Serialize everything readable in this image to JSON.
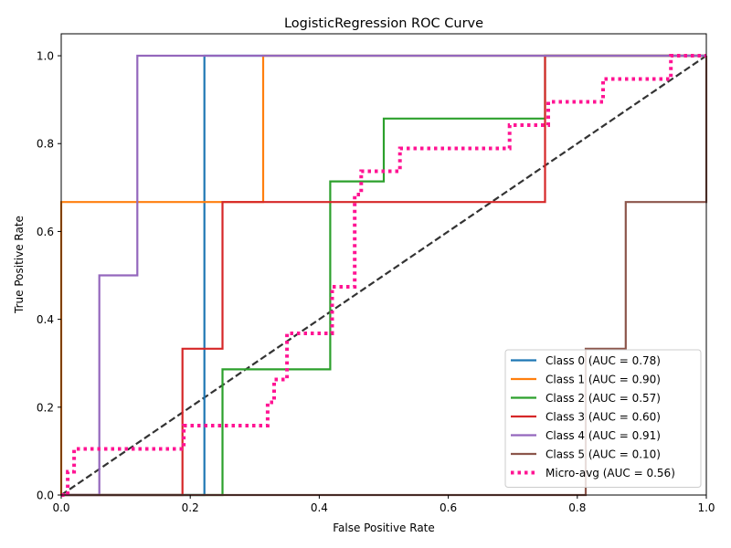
{
  "chart_data": {
    "type": "line",
    "title": "LogisticRegression ROC Curve",
    "xlabel": "False Positive Rate",
    "ylabel": "True Positive Rate",
    "xlim": [
      0.0,
      1.0
    ],
    "ylim": [
      0.0,
      1.05
    ],
    "xticks": [
      "0.0",
      "0.2",
      "0.4",
      "0.6",
      "0.8",
      "1.0"
    ],
    "yticks": [
      "0.0",
      "0.2",
      "0.4",
      "0.6",
      "0.8",
      "1.0"
    ],
    "grid": false,
    "legend_position": "lower-right",
    "series": [
      {
        "name": "Class 0 (AUC = 0.78)",
        "color": "#1f77b4",
        "style": "solid",
        "points": [
          [
            0,
            0
          ],
          [
            0.222,
            0
          ],
          [
            0.222,
            1.0
          ],
          [
            1,
            1.0
          ]
        ]
      },
      {
        "name": "Class 1 (AUC = 0.90)",
        "color": "#ff7f0e",
        "style": "solid",
        "points": [
          [
            0,
            0
          ],
          [
            0,
            0.667
          ],
          [
            0.313,
            0.667
          ],
          [
            0.313,
            1.0
          ],
          [
            1,
            1.0
          ]
        ]
      },
      {
        "name": "Class 2 (AUC = 0.57)",
        "color": "#2ca02c",
        "style": "solid",
        "points": [
          [
            0,
            0
          ],
          [
            0.25,
            0
          ],
          [
            0.25,
            0.286
          ],
          [
            0.417,
            0.286
          ],
          [
            0.417,
            0.714
          ],
          [
            0.5,
            0.714
          ],
          [
            0.5,
            0.857
          ],
          [
            0.75,
            0.857
          ],
          [
            0.75,
            1.0
          ],
          [
            1,
            1.0
          ]
        ]
      },
      {
        "name": "Class 3 (AUC = 0.60)",
        "color": "#d62728",
        "style": "solid",
        "points": [
          [
            0,
            0
          ],
          [
            0.188,
            0
          ],
          [
            0.188,
            0.333
          ],
          [
            0.25,
            0.333
          ],
          [
            0.25,
            0.667
          ],
          [
            0.75,
            0.667
          ],
          [
            0.75,
            1.0
          ],
          [
            1,
            1.0
          ]
        ]
      },
      {
        "name": "Class 4 (AUC = 0.91)",
        "color": "#9467bd",
        "style": "solid",
        "points": [
          [
            0,
            0
          ],
          [
            0.059,
            0
          ],
          [
            0.059,
            0.5
          ],
          [
            0.118,
            0.5
          ],
          [
            0.118,
            1.0
          ],
          [
            1,
            1.0
          ]
        ]
      },
      {
        "name": "Class 5 (AUC = 0.10)",
        "color": "#8c564b",
        "style": "solid",
        "points": [
          [
            0,
            0
          ],
          [
            0.813,
            0
          ],
          [
            0.813,
            0.333
          ],
          [
            0.875,
            0.333
          ],
          [
            0.875,
            0.667
          ],
          [
            1,
            0.667
          ],
          [
            1,
            1.0
          ]
        ]
      },
      {
        "name": "Micro-avg (AUC = 0.56)",
        "color": "#ff1493",
        "style": "dotted",
        "points": [
          [
            0,
            0
          ],
          [
            0.01,
            0
          ],
          [
            0.01,
            0.053
          ],
          [
            0.02,
            0.053
          ],
          [
            0.02,
            0.105
          ],
          [
            0.19,
            0.105
          ],
          [
            0.19,
            0.158
          ],
          [
            0.32,
            0.158
          ],
          [
            0.32,
            0.211
          ],
          [
            0.33,
            0.211
          ],
          [
            0.33,
            0.263
          ],
          [
            0.35,
            0.263
          ],
          [
            0.35,
            0.368
          ],
          [
            0.42,
            0.368
          ],
          [
            0.42,
            0.474
          ],
          [
            0.455,
            0.474
          ],
          [
            0.455,
            0.684
          ],
          [
            0.465,
            0.684
          ],
          [
            0.465,
            0.737
          ],
          [
            0.525,
            0.737
          ],
          [
            0.525,
            0.789
          ],
          [
            0.695,
            0.789
          ],
          [
            0.695,
            0.842
          ],
          [
            0.755,
            0.842
          ],
          [
            0.755,
            0.895
          ],
          [
            0.84,
            0.895
          ],
          [
            0.84,
            0.947
          ],
          [
            0.945,
            0.947
          ],
          [
            0.945,
            1.0
          ],
          [
            1,
            1.0
          ]
        ]
      },
      {
        "name": "",
        "color": "#333333",
        "style": "dashed",
        "points": [
          [
            0,
            0
          ],
          [
            1,
            1
          ]
        ]
      }
    ]
  }
}
